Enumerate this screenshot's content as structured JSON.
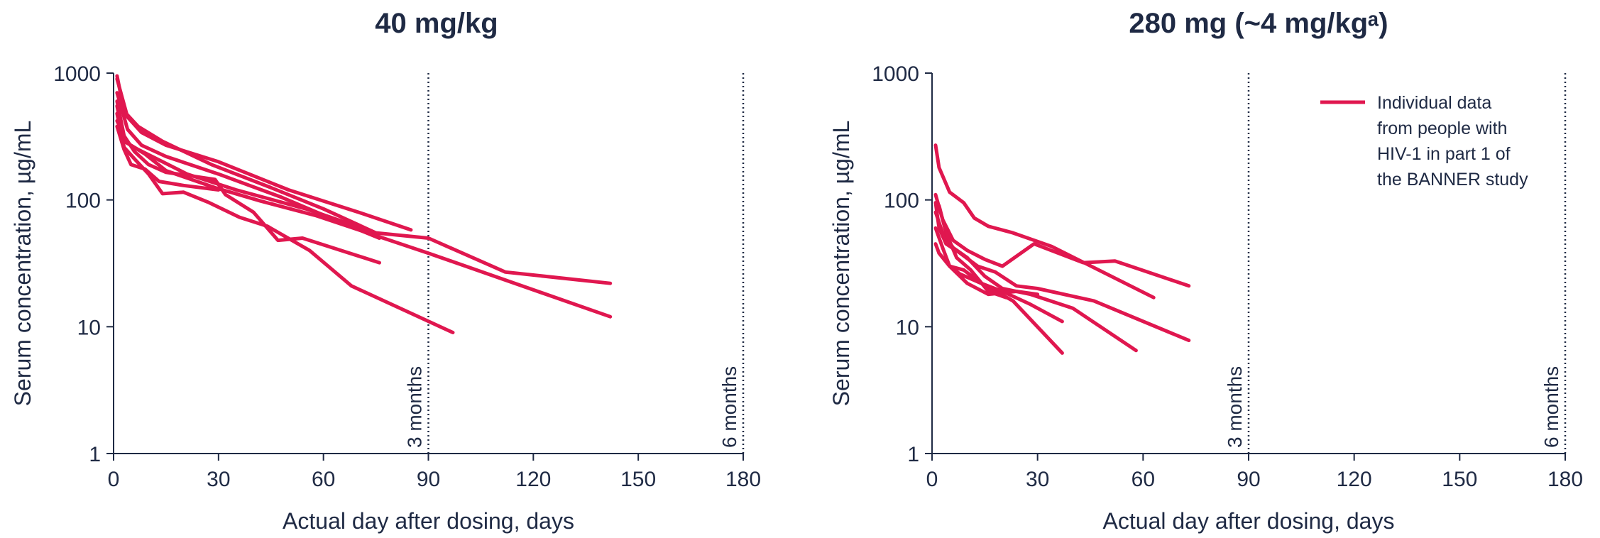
{
  "colors": {
    "series": "#e0174f",
    "text": "#1f2a44",
    "axis": "#1f2a44"
  },
  "legend": {
    "lines": [
      "Individual data",
      "from people with",
      "HIV-1 in part 1 of",
      "the BANNER study"
    ]
  },
  "chart_data": [
    {
      "type": "line",
      "title": "40 mg/kg",
      "xlabel": "Actual day after dosing, days",
      "ylabel": "Serum concentration, µg/mL",
      "xlim": [
        0,
        180
      ],
      "ylim": [
        1,
        1000
      ],
      "yscale": "log",
      "xticks": [
        "0",
        "30",
        "60",
        "90",
        "120",
        "150",
        "180"
      ],
      "yticks": [
        "1",
        "10",
        "100",
        "1000"
      ],
      "reference_lines": [
        {
          "x": 90,
          "label": "3 months"
        },
        {
          "x": 180,
          "label": "6 months"
        }
      ],
      "series": [
        {
          "x": [
            1,
            4,
            8,
            15,
            30,
            50,
            70,
            85
          ],
          "y": [
            900,
            450,
            340,
            270,
            200,
            120,
            80,
            58
          ]
        },
        {
          "x": [
            1,
            3,
            7,
            14,
            28,
            45,
            60,
            75
          ],
          "y": [
            950,
            500,
            380,
            290,
            190,
            125,
            85,
            55
          ]
        },
        {
          "x": [
            1,
            4,
            8,
            15,
            30,
            48,
            62,
            76
          ],
          "y": [
            700,
            360,
            270,
            220,
            160,
            105,
            72,
            50
          ]
        },
        {
          "x": [
            1,
            3,
            7,
            14,
            21,
            35,
            55,
            75,
            90,
            112,
            142
          ],
          "y": [
            550,
            290,
            250,
            200,
            160,
            120,
            85,
            55,
            50,
            27,
            22
          ]
        },
        {
          "x": [
            1,
            4,
            9,
            15,
            29,
            42,
            58,
            90,
            142
          ],
          "y": [
            420,
            280,
            230,
            170,
            125,
            98,
            75,
            38,
            12
          ]
        },
        {
          "x": [
            1,
            3,
            6,
            10,
            14,
            20,
            27,
            36,
            44,
            56,
            68,
            97
          ],
          "y": [
            480,
            260,
            210,
            160,
            112,
            115,
            96,
            73,
            62,
            40,
            21,
            9
          ]
        },
        {
          "x": [
            1,
            3,
            6,
            10,
            15,
            22,
            29,
            32,
            40,
            47,
            54,
            76
          ],
          "y": [
            600,
            320,
            240,
            190,
            165,
            155,
            145,
            110,
            80,
            48,
            50,
            32
          ]
        },
        {
          "x": [
            1,
            3,
            5,
            9,
            13,
            20,
            30
          ],
          "y": [
            380,
            250,
            190,
            175,
            140,
            130,
            120
          ]
        }
      ]
    },
    {
      "type": "line",
      "title": "280 mg (~4 mg/kgᵃ)",
      "xlabel": "Actual day after dosing, days",
      "ylabel": "Serum concentration, µg/mL",
      "xlim": [
        0,
        180
      ],
      "ylim": [
        1,
        1000
      ],
      "yscale": "log",
      "xticks": [
        "0",
        "30",
        "60",
        "90",
        "120",
        "150",
        "180"
      ],
      "yticks": [
        "1",
        "10",
        "100",
        "1000"
      ],
      "reference_lines": [
        {
          "x": 90,
          "label": "3 months"
        },
        {
          "x": 180,
          "label": "6 months"
        }
      ],
      "series": [
        {
          "x": [
            1,
            2,
            5,
            9,
            12,
            16,
            23,
            34,
            63
          ],
          "y": [
            270,
            180,
            115,
            95,
            72,
            62,
            55,
            43,
            17
          ]
        },
        {
          "x": [
            1,
            3,
            6,
            10,
            15,
            20,
            29,
            43,
            52,
            73
          ],
          "y": [
            110,
            70,
            48,
            40,
            34,
            30,
            45,
            32,
            33,
            21
          ]
        },
        {
          "x": [
            1,
            2,
            4,
            8,
            13,
            18,
            24,
            30,
            46,
            73
          ],
          "y": [
            95,
            60,
            45,
            38,
            30,
            27,
            21,
            20,
            16,
            7.8
          ]
        },
        {
          "x": [
            1,
            3,
            6,
            10,
            15,
            20,
            28,
            40,
            58
          ],
          "y": [
            80,
            55,
            42,
            35,
            25,
            20,
            18,
            14,
            6.5
          ]
        },
        {
          "x": [
            1,
            3,
            5,
            8,
            14,
            23,
            37
          ],
          "y": [
            60,
            42,
            30,
            26,
            22,
            16,
            6.2
          ]
        },
        {
          "x": [
            1,
            2,
            5,
            9,
            14,
            20,
            28,
            37
          ],
          "y": [
            45,
            38,
            30,
            28,
            22,
            19,
            15,
            11
          ]
        },
        {
          "x": [
            2,
            4,
            7,
            11,
            16,
            21
          ],
          "y": [
            90,
            55,
            35,
            28,
            19,
            17
          ]
        },
        {
          "x": [
            2,
            5,
            10,
            16,
            24,
            30
          ],
          "y": [
            38,
            30,
            22,
            18,
            19,
            18
          ]
        }
      ]
    }
  ]
}
